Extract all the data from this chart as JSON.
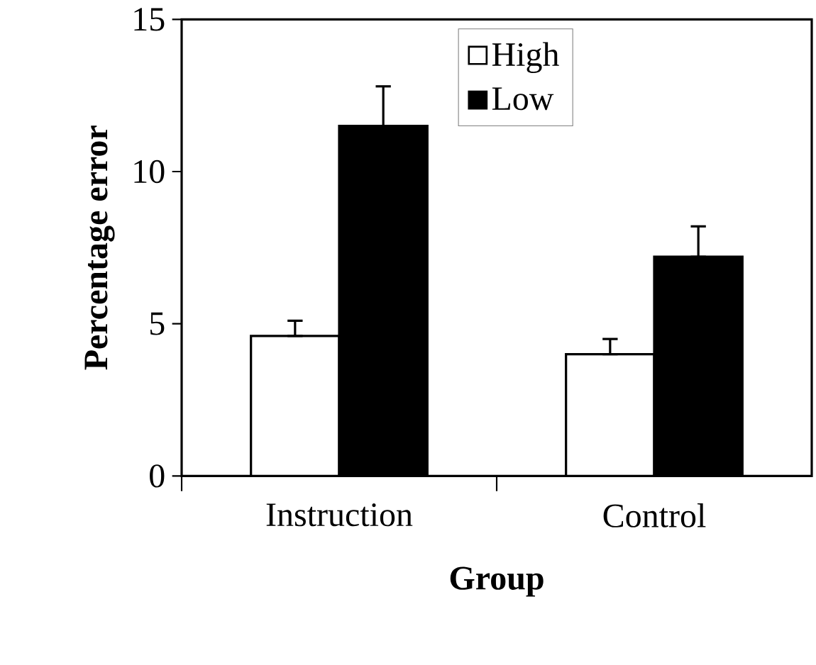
{
  "chart_data": {
    "type": "bar",
    "xlabel": "Group",
    "ylabel": "Percentage error",
    "categories": [
      "Instruction",
      "Control"
    ],
    "series": [
      {
        "name": "High",
        "color": "#ffffff",
        "values": [
          4.6,
          4.0
        ],
        "errors": [
          [
            4.6,
            5.1
          ],
          [
            4.0,
            4.5
          ]
        ]
      },
      {
        "name": "Low",
        "color": "#000000",
        "values": [
          11.5,
          7.2
        ],
        "errors": [
          [
            11.5,
            12.8
          ],
          [
            7.2,
            8.2
          ]
        ]
      }
    ],
    "ylim": [
      0,
      15
    ],
    "yticks": [
      0,
      5,
      10,
      15
    ],
    "grid": false,
    "legend": "top"
  }
}
